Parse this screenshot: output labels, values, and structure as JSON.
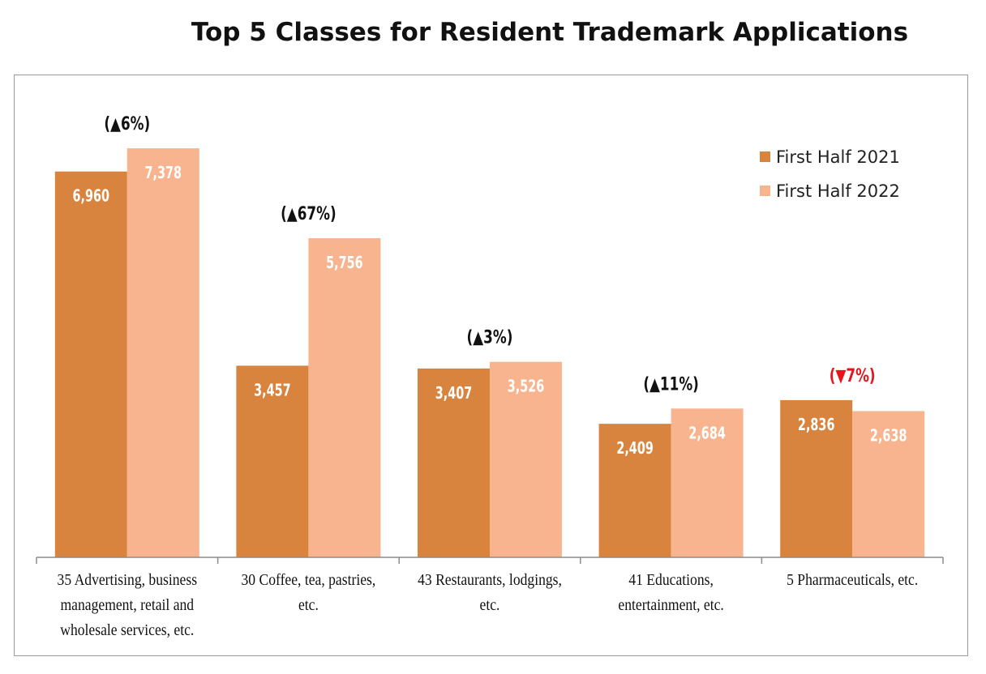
{
  "chart_data": {
    "type": "bar",
    "title": "Top 5 Classes for Resident Trademark Applications",
    "categories": [
      [
        "35 Advertising, business",
        "management, retail and",
        "wholesale services, etc."
      ],
      [
        "30 Coffee, tea, pastries,",
        "etc."
      ],
      [
        "43 Restaurants, lodgings,",
        "etc."
      ],
      [
        "41 Educations,",
        "entertainment, etc."
      ],
      [
        "5 Pharmaceuticals, etc."
      ]
    ],
    "series": [
      {
        "name": "First Half 2021",
        "color": "#d9843e",
        "values": [
          6960,
          3457,
          3407,
          2409,
          2836
        ],
        "labels": [
          "6,960",
          "3,457",
          "3,407",
          "2,409",
          "2,836"
        ]
      },
      {
        "name": "First Half 2022",
        "color": "#f8b48f",
        "values": [
          7378,
          5756,
          3526,
          2684,
          2638
        ],
        "labels": [
          "7,378",
          "5,756",
          "3,526",
          "2,684",
          "2,638"
        ]
      }
    ],
    "changes": [
      {
        "text": "(▲6%)",
        "color": "#111111"
      },
      {
        "text": "(▲67%)",
        "color": "#111111"
      },
      {
        "text": "(▲3%)",
        "color": "#111111"
      },
      {
        "text": "(▲11%)",
        "color": "#111111"
      },
      {
        "text": "(▼7%)",
        "color": "#e8141b"
      }
    ],
    "ylim": [
      0,
      8300
    ],
    "grid": false,
    "legend_position": "top-right"
  }
}
